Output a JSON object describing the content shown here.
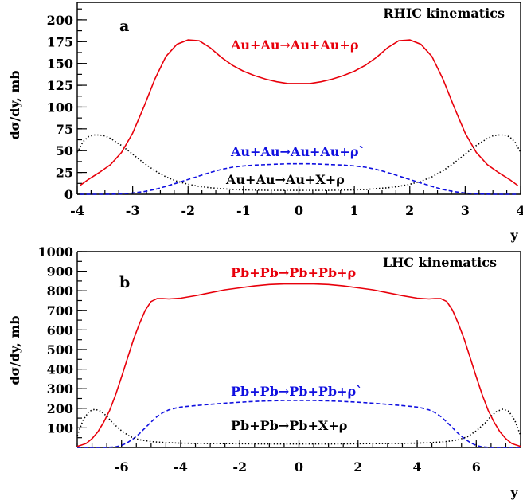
{
  "chart_data": [
    {
      "type": "line",
      "panel": "a",
      "title": "RHIC kinematics",
      "xlabel": "y",
      "ylabel": "dσ/dy,  mb",
      "xlim": [
        -4,
        4
      ],
      "ylim": [
        0,
        220
      ],
      "xticks": [
        -4,
        -3,
        -2,
        -1,
        0,
        1,
        2,
        3,
        4
      ],
      "yticks": [
        0,
        25,
        50,
        75,
        100,
        125,
        150,
        175,
        200
      ],
      "series": [
        {
          "name": "Au+Au→Au+Au+ρ",
          "color": "#e8000b",
          "style": "solid",
          "x": [
            -3.95,
            -3.8,
            -3.6,
            -3.4,
            -3.2,
            -3.0,
            -2.8,
            -2.6,
            -2.4,
            -2.2,
            -2.0,
            -1.8,
            -1.6,
            -1.4,
            -1.2,
            -1.0,
            -0.8,
            -0.6,
            -0.4,
            -0.2,
            0.0,
            0.2,
            0.4,
            0.6,
            0.8,
            1.0,
            1.2,
            1.4,
            1.6,
            1.8,
            2.0,
            2.2,
            2.4,
            2.6,
            2.8,
            3.0,
            3.2,
            3.4,
            3.6,
            3.8,
            3.95
          ],
          "y": [
            10,
            17,
            25,
            34,
            48,
            70,
            100,
            132,
            158,
            172,
            177,
            176,
            168,
            157,
            148,
            141,
            136,
            132,
            129,
            127,
            127,
            127,
            129,
            132,
            136,
            141,
            148,
            157,
            168,
            176,
            177,
            172,
            158,
            132,
            100,
            70,
            48,
            34,
            25,
            17,
            10
          ]
        },
        {
          "name": "Au+Au→Au+Au+ρ`",
          "color": "#1010e0",
          "style": "dashed",
          "x": [
            -3.95,
            -3.5,
            -3.2,
            -3.0,
            -2.8,
            -2.6,
            -2.4,
            -2.2,
            -2.0,
            -1.8,
            -1.6,
            -1.4,
            -1.2,
            -1.0,
            -0.8,
            -0.6,
            -0.4,
            -0.2,
            0.0,
            0.2,
            0.4,
            0.6,
            0.8,
            1.0,
            1.2,
            1.4,
            1.6,
            1.8,
            2.0,
            2.2,
            2.4,
            2.6,
            2.8,
            3.0,
            3.2,
            3.5,
            3.95
          ],
          "y": [
            0,
            0,
            0.5,
            1.5,
            3,
            5.5,
            9,
            13,
            17,
            21,
            25,
            28.5,
            31,
            32.5,
            33.5,
            34,
            34.5,
            35,
            35,
            35,
            34.5,
            34,
            33.5,
            32.5,
            31,
            28.5,
            25,
            21,
            17,
            13,
            9,
            5.5,
            3,
            1.5,
            0.5,
            0,
            0
          ]
        },
        {
          "name": "Au+Au→Au+X+ρ",
          "color": "#000000",
          "style": "dotted",
          "x": [
            -4.0,
            -3.9,
            -3.8,
            -3.7,
            -3.6,
            -3.5,
            -3.4,
            -3.2,
            -3.0,
            -2.8,
            -2.6,
            -2.4,
            -2.2,
            -2.0,
            -1.8,
            -1.6,
            -1.4,
            -1.2,
            -1.0,
            -0.5,
            0.0,
            0.5,
            1.0,
            1.2,
            1.4,
            1.6,
            1.8,
            2.0,
            2.2,
            2.4,
            2.6,
            2.8,
            3.0,
            3.2,
            3.4,
            3.5,
            3.6,
            3.7,
            3.8,
            3.9,
            4.0
          ],
          "y": [
            48,
            60,
            66,
            68,
            68,
            67,
            64,
            56,
            46,
            36,
            27,
            20,
            15,
            11.5,
            9,
            7.5,
            6.5,
            5.5,
            5,
            4.5,
            4.5,
            4.5,
            5,
            5.5,
            6.5,
            7.5,
            9,
            11.5,
            15,
            20,
            27,
            36,
            46,
            56,
            64,
            67,
            68,
            68,
            66,
            60,
            48
          ]
        }
      ]
    },
    {
      "type": "line",
      "panel": "b",
      "title": "LHC kinematics",
      "xlabel": "y",
      "ylabel": "dσ/dy,  mb",
      "xlim": [
        -7.5,
        7.5
      ],
      "ylim": [
        0,
        1000
      ],
      "xticks": [
        -6,
        -4,
        -2,
        0,
        2,
        4,
        6
      ],
      "yticks": [
        100,
        200,
        300,
        400,
        500,
        600,
        700,
        800,
        900,
        1000
      ],
      "series": [
        {
          "name": "Pb+Pb→Pb+Pb+ρ",
          "color": "#e8000b",
          "style": "solid",
          "x": [
            -7.5,
            -7.2,
            -7.0,
            -6.8,
            -6.6,
            -6.4,
            -6.2,
            -6.0,
            -5.8,
            -5.6,
            -5.4,
            -5.2,
            -5.0,
            -4.8,
            -4.6,
            -4.4,
            -4.0,
            -3.5,
            -3.0,
            -2.5,
            -2.0,
            -1.5,
            -1.0,
            -0.5,
            0.0,
            0.5,
            1.0,
            1.5,
            2.0,
            2.5,
            3.0,
            3.5,
            4.0,
            4.4,
            4.6,
            4.8,
            5.0,
            5.2,
            5.4,
            5.6,
            5.8,
            6.0,
            6.2,
            6.4,
            6.6,
            6.8,
            7.0,
            7.2,
            7.5
          ],
          "y": [
            5,
            20,
            45,
            80,
            130,
            190,
            270,
            360,
            455,
            550,
            630,
            700,
            745,
            760,
            760,
            758,
            762,
            775,
            790,
            805,
            815,
            825,
            832,
            835,
            835,
            835,
            832,
            825,
            815,
            805,
            790,
            775,
            762,
            758,
            760,
            760,
            745,
            700,
            630,
            550,
            455,
            360,
            270,
            190,
            130,
            80,
            45,
            20,
            5
          ]
        },
        {
          "name": "Pb+Pb→Pb+Pb+ρ`",
          "color": "#1010e0",
          "style": "dashed",
          "x": [
            -7.5,
            -6.5,
            -6.2,
            -6.0,
            -5.8,
            -5.6,
            -5.4,
            -5.2,
            -5.0,
            -4.8,
            -4.6,
            -4.4,
            -4.2,
            -4.0,
            -3.5,
            -3.0,
            -2.5,
            -2.0,
            -1.5,
            -1.0,
            -0.5,
            0.0,
            0.5,
            1.0,
            1.5,
            2.0,
            2.5,
            3.0,
            3.5,
            4.0,
            4.2,
            4.4,
            4.6,
            4.8,
            5.0,
            5.2,
            5.4,
            5.6,
            5.8,
            6.0,
            6.2,
            6.5,
            7.5
          ],
          "y": [
            0,
            0,
            3,
            10,
            25,
            45,
            70,
            100,
            130,
            158,
            178,
            192,
            200,
            206,
            214,
            220,
            226,
            231,
            235,
            238,
            240,
            240,
            240,
            238,
            235,
            231,
            226,
            220,
            214,
            206,
            200,
            192,
            178,
            158,
            130,
            100,
            70,
            45,
            25,
            10,
            3,
            0,
            0
          ]
        },
        {
          "name": "Pb+Pb→Pb+X+ρ",
          "color": "#000000",
          "style": "dotted",
          "x": [
            -7.5,
            -7.3,
            -7.1,
            -6.9,
            -6.7,
            -6.5,
            -6.3,
            -6.0,
            -5.7,
            -5.4,
            -5.0,
            -4.5,
            -4.0,
            -3.0,
            -2.0,
            -1.0,
            0.0,
            1.0,
            2.0,
            3.0,
            4.0,
            4.5,
            5.0,
            5.4,
            5.7,
            6.0,
            6.3,
            6.5,
            6.7,
            6.9,
            7.1,
            7.3,
            7.5
          ],
          "y": [
            60,
            140,
            185,
            195,
            185,
            160,
            125,
            85,
            55,
            40,
            30,
            25,
            22,
            20,
            19,
            18,
            18,
            18,
            19,
            20,
            22,
            25,
            30,
            40,
            55,
            85,
            125,
            160,
            185,
            195,
            185,
            140,
            60
          ]
        }
      ]
    }
  ]
}
